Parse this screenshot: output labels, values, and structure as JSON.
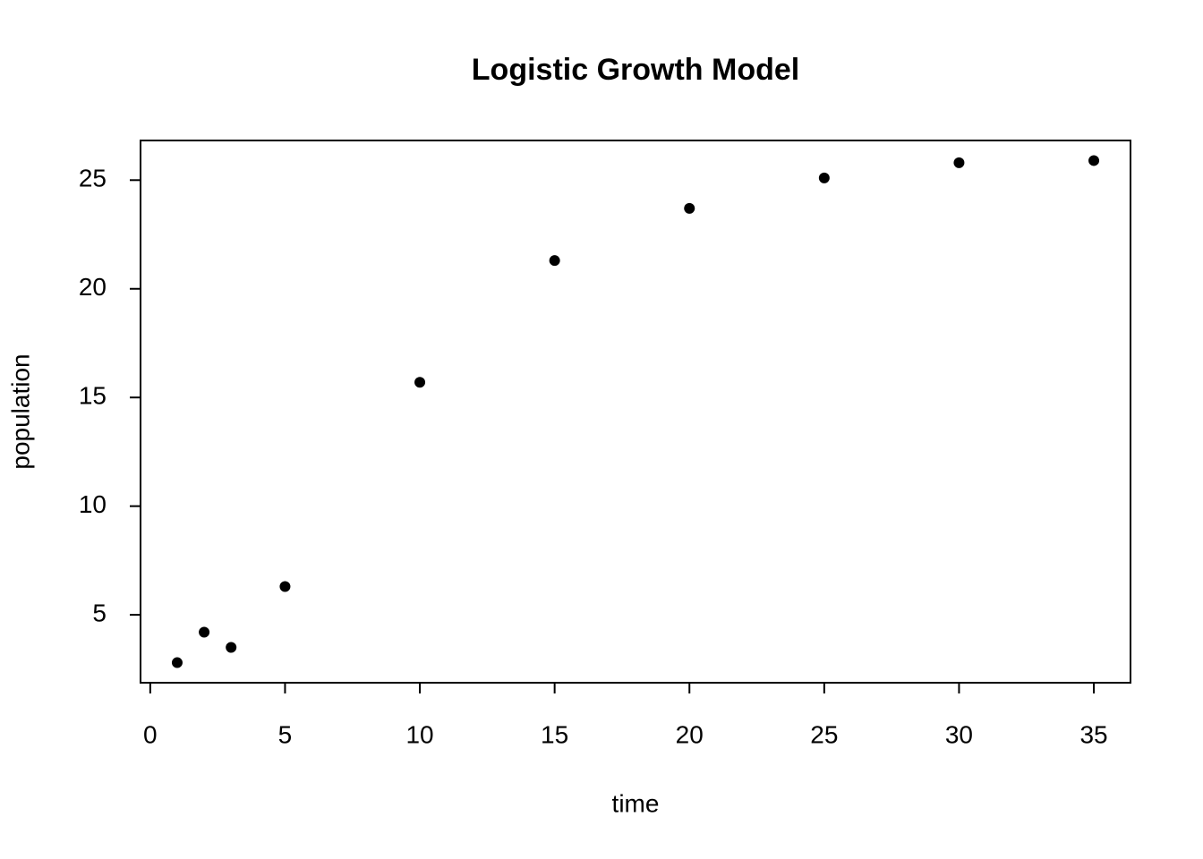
{
  "chart_data": {
    "type": "scatter",
    "title": "Logistic Growth Model",
    "x_label": "time",
    "y_label": "population",
    "x": [
      1,
      2,
      3,
      5,
      10,
      15,
      20,
      25,
      30,
      35
    ],
    "values": [
      2.8,
      4.2,
      3.5,
      6.3,
      15.7,
      21.3,
      23.7,
      25.1,
      25.8,
      25.9
    ],
    "color": "#000000",
    "xlim": [
      -0.36,
      36.36
    ],
    "ylim": [
      1.876,
      26.824
    ],
    "xticks": [
      0,
      5,
      10,
      15,
      20,
      25,
      30,
      35
    ],
    "yticks": [
      5,
      10,
      15,
      20,
      25
    ]
  }
}
